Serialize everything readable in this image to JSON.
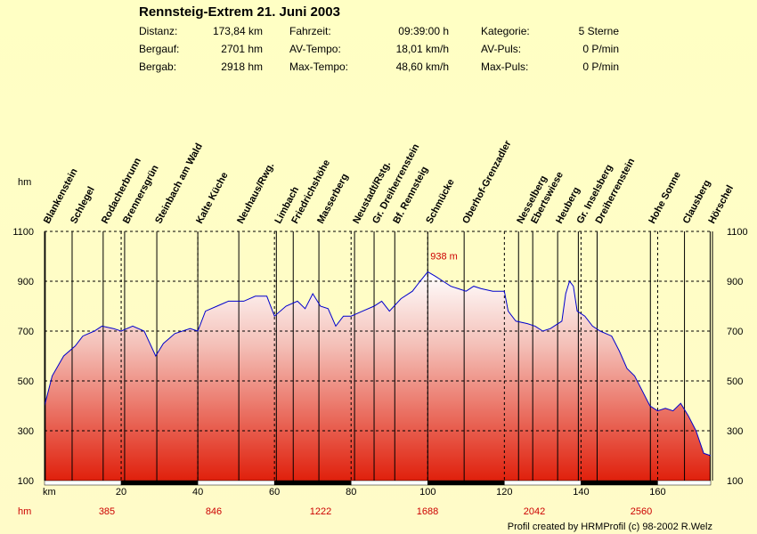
{
  "header": {
    "title": "Rennsteig-Extrem 21. Juni 2003",
    "stats": [
      {
        "label": "Distanz:",
        "value": "173,84 km"
      },
      {
        "label": "Bergauf:",
        "value": "2701 hm"
      },
      {
        "label": "Bergab:",
        "value": "2918 hm"
      },
      {
        "label": "Fahrzeit:",
        "value": "09:39:00 h"
      },
      {
        "label": "AV-Tempo:",
        "value": "18,01 km/h"
      },
      {
        "label": "Max-Tempo:",
        "value": "48,60 km/h"
      },
      {
        "label": "Kategorie:",
        "value": "5 Sterne"
      },
      {
        "label": "AV-Puls:",
        "value": "0 P/min"
      },
      {
        "label": "Max-Puls:",
        "value": "0 P/min"
      }
    ]
  },
  "chart_data": {
    "type": "area",
    "ylabel": "hm",
    "xlabel": "km",
    "xlim": [
      0,
      173.84
    ],
    "ylim": [
      100,
      1100
    ],
    "yticks": [
      100,
      300,
      500,
      700,
      900,
      1100
    ],
    "xticks": [
      20,
      40,
      60,
      80,
      100,
      120,
      140,
      160
    ],
    "grid": true,
    "fill_colors": {
      "top": "#ffffff",
      "bottom": "#e0200c"
    },
    "line_color": "#0000cc",
    "max_label": "938 m",
    "max_point": [
      100,
      938
    ],
    "x": [
      0,
      2,
      5,
      8,
      10,
      13,
      15,
      18,
      20,
      23,
      26,
      29,
      31,
      34,
      38,
      40,
      42,
      45,
      48,
      52,
      55,
      58,
      60,
      63,
      66,
      68,
      70,
      72,
      74,
      76,
      78,
      80,
      83,
      86,
      88,
      90,
      93,
      96,
      98,
      100,
      102,
      104,
      106,
      108,
      110,
      112,
      114,
      117,
      120,
      121,
      123,
      126,
      128,
      130,
      132,
      135,
      136,
      137,
      138,
      139,
      141,
      143,
      145,
      148,
      150,
      152,
      154,
      156,
      158,
      160,
      162,
      164,
      166,
      168,
      170,
      172,
      173.84
    ],
    "y": [
      400,
      520,
      600,
      640,
      680,
      700,
      720,
      710,
      700,
      720,
      700,
      600,
      650,
      690,
      710,
      700,
      780,
      800,
      820,
      820,
      840,
      840,
      760,
      800,
      820,
      790,
      850,
      800,
      790,
      720,
      760,
      760,
      780,
      800,
      820,
      780,
      830,
      860,
      900,
      938,
      920,
      900,
      880,
      870,
      860,
      880,
      870,
      860,
      860,
      780,
      740,
      730,
      720,
      700,
      710,
      740,
      850,
      900,
      880,
      780,
      760,
      720,
      700,
      680,
      620,
      550,
      520,
      460,
      400,
      380,
      390,
      380,
      410,
      360,
      300,
      210,
      200
    ],
    "waypoints": [
      {
        "name": "Blankenstein",
        "km": 0.2
      },
      {
        "name": "Schlegel",
        "km": 7.2
      },
      {
        "name": "Rodacherbrunn",
        "km": 15.3
      },
      {
        "name": "Brennersgrün",
        "km": 20.9
      },
      {
        "name": "Steinbach am Wald",
        "km": 29.3
      },
      {
        "name": "Kalte Küche",
        "km": 40
      },
      {
        "name": "Neuhaus/Rwg.",
        "km": 50.7
      },
      {
        "name": "Limbach",
        "km": 60.5
      },
      {
        "name": "Friedrichshöhe",
        "km": 64.9
      },
      {
        "name": "Masserberg",
        "km": 71.6
      },
      {
        "name": "Neustadt/Rstg.",
        "km": 80.9
      },
      {
        "name": "Gr. Dreiherrenstein",
        "km": 86
      },
      {
        "name": "Bf. Rennsteig",
        "km": 91.4
      },
      {
        "name": "Schmücke",
        "km": 100
      },
      {
        "name": "Oberhof-Grenzadler",
        "km": 109.5
      },
      {
        "name": "Nesselberg",
        "km": 123.7
      },
      {
        "name": "Ebertswiese",
        "km": 127.4
      },
      {
        "name": "Heuberg",
        "km": 133.9
      },
      {
        "name": "Gr. Inselsberg",
        "km": 139.3
      },
      {
        "name": "Dreiherrenstein",
        "km": 144.2
      },
      {
        "name": "Hohe Sonne",
        "km": 158.1
      },
      {
        "name": "Clausberg",
        "km": 167
      },
      {
        "name": "Hörschel",
        "km": 173.7
      }
    ],
    "ascent_label": "hm",
    "ascent_values": [
      "385",
      "846",
      "1222",
      "1688",
      "2042",
      "2560"
    ]
  },
  "footer": "Profil created by HRMProfil (c) 98-2002 R.Welz"
}
